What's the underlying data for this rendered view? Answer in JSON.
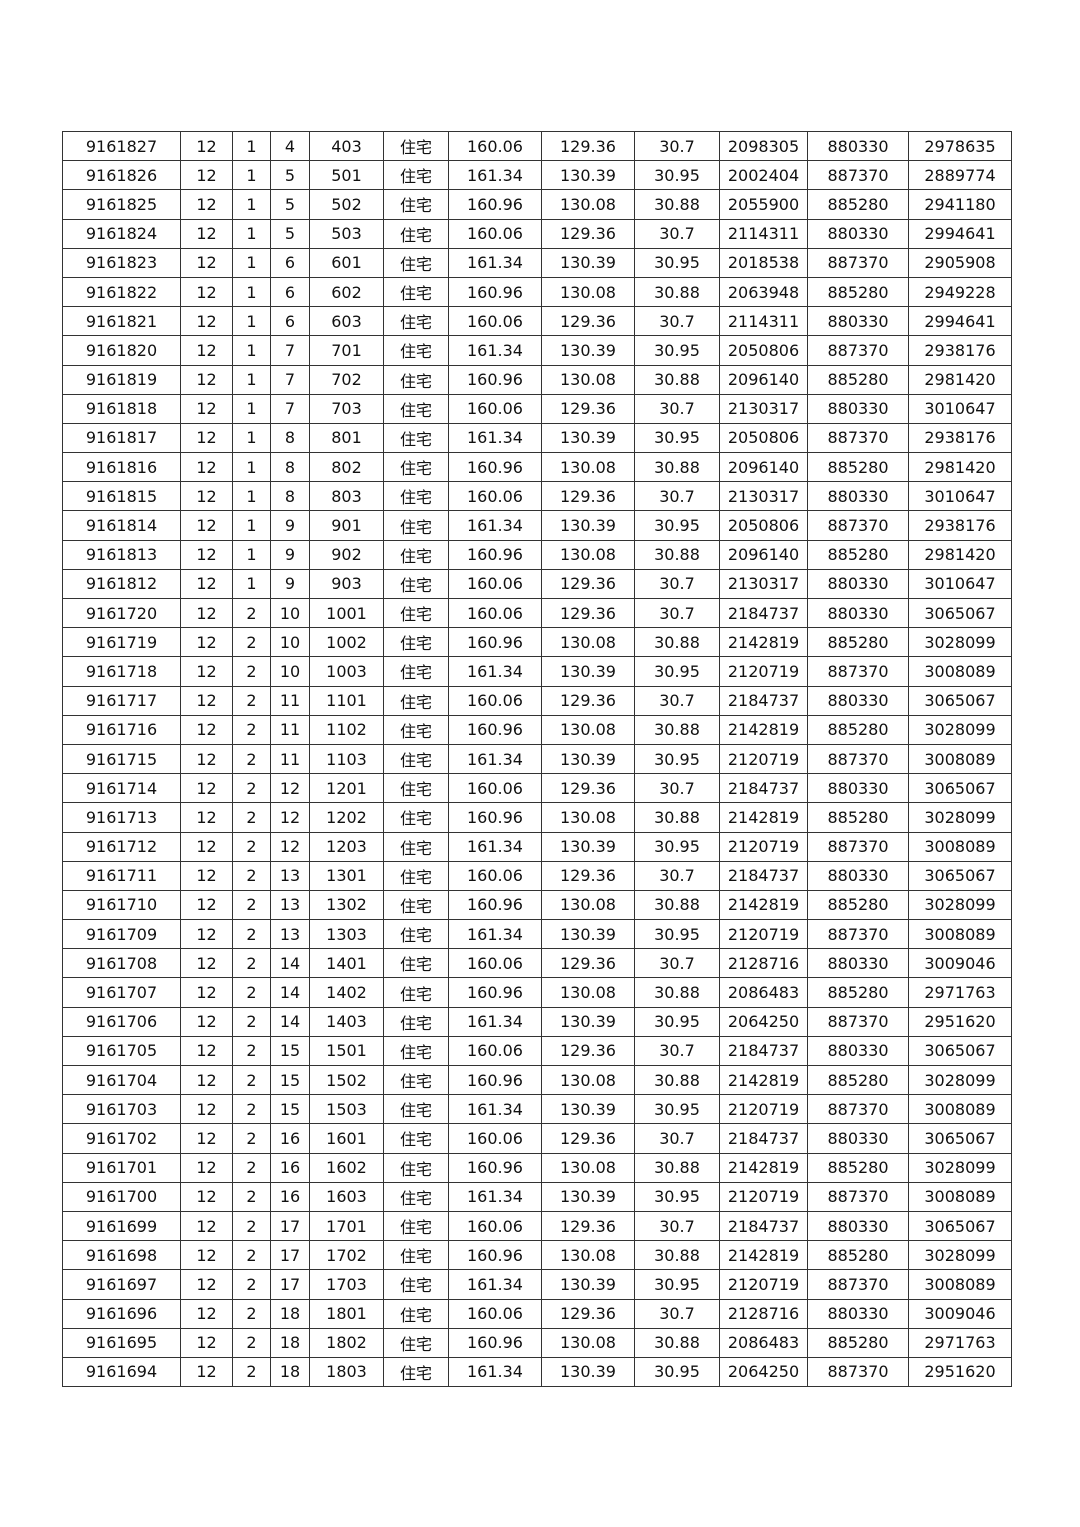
{
  "table": {
    "rows": [
      [
        "9161827",
        "12",
        "1",
        "4",
        "403",
        "住宅",
        "160.06",
        "129.36",
        "30.7",
        "2098305",
        "880330",
        "2978635"
      ],
      [
        "9161826",
        "12",
        "1",
        "5",
        "501",
        "住宅",
        "161.34",
        "130.39",
        "30.95",
        "2002404",
        "887370",
        "2889774"
      ],
      [
        "9161825",
        "12",
        "1",
        "5",
        "502",
        "住宅",
        "160.96",
        "130.08",
        "30.88",
        "2055900",
        "885280",
        "2941180"
      ],
      [
        "9161824",
        "12",
        "1",
        "5",
        "503",
        "住宅",
        "160.06",
        "129.36",
        "30.7",
        "2114311",
        "880330",
        "2994641"
      ],
      [
        "9161823",
        "12",
        "1",
        "6",
        "601",
        "住宅",
        "161.34",
        "130.39",
        "30.95",
        "2018538",
        "887370",
        "2905908"
      ],
      [
        "9161822",
        "12",
        "1",
        "6",
        "602",
        "住宅",
        "160.96",
        "130.08",
        "30.88",
        "2063948",
        "885280",
        "2949228"
      ],
      [
        "9161821",
        "12",
        "1",
        "6",
        "603",
        "住宅",
        "160.06",
        "129.36",
        "30.7",
        "2114311",
        "880330",
        "2994641"
      ],
      [
        "9161820",
        "12",
        "1",
        "7",
        "701",
        "住宅",
        "161.34",
        "130.39",
        "30.95",
        "2050806",
        "887370",
        "2938176"
      ],
      [
        "9161819",
        "12",
        "1",
        "7",
        "702",
        "住宅",
        "160.96",
        "130.08",
        "30.88",
        "2096140",
        "885280",
        "2981420"
      ],
      [
        "9161818",
        "12",
        "1",
        "7",
        "703",
        "住宅",
        "160.06",
        "129.36",
        "30.7",
        "2130317",
        "880330",
        "3010647"
      ],
      [
        "9161817",
        "12",
        "1",
        "8",
        "801",
        "住宅",
        "161.34",
        "130.39",
        "30.95",
        "2050806",
        "887370",
        "2938176"
      ],
      [
        "9161816",
        "12",
        "1",
        "8",
        "802",
        "住宅",
        "160.96",
        "130.08",
        "30.88",
        "2096140",
        "885280",
        "2981420"
      ],
      [
        "9161815",
        "12",
        "1",
        "8",
        "803",
        "住宅",
        "160.06",
        "129.36",
        "30.7",
        "2130317",
        "880330",
        "3010647"
      ],
      [
        "9161814",
        "12",
        "1",
        "9",
        "901",
        "住宅",
        "161.34",
        "130.39",
        "30.95",
        "2050806",
        "887370",
        "2938176"
      ],
      [
        "9161813",
        "12",
        "1",
        "9",
        "902",
        "住宅",
        "160.96",
        "130.08",
        "30.88",
        "2096140",
        "885280",
        "2981420"
      ],
      [
        "9161812",
        "12",
        "1",
        "9",
        "903",
        "住宅",
        "160.06",
        "129.36",
        "30.7",
        "2130317",
        "880330",
        "3010647"
      ],
      [
        "9161720",
        "12",
        "2",
        "10",
        "1001",
        "住宅",
        "160.06",
        "129.36",
        "30.7",
        "2184737",
        "880330",
        "3065067"
      ],
      [
        "9161719",
        "12",
        "2",
        "10",
        "1002",
        "住宅",
        "160.96",
        "130.08",
        "30.88",
        "2142819",
        "885280",
        "3028099"
      ],
      [
        "9161718",
        "12",
        "2",
        "10",
        "1003",
        "住宅",
        "161.34",
        "130.39",
        "30.95",
        "2120719",
        "887370",
        "3008089"
      ],
      [
        "9161717",
        "12",
        "2",
        "11",
        "1101",
        "住宅",
        "160.06",
        "129.36",
        "30.7",
        "2184737",
        "880330",
        "3065067"
      ],
      [
        "9161716",
        "12",
        "2",
        "11",
        "1102",
        "住宅",
        "160.96",
        "130.08",
        "30.88",
        "2142819",
        "885280",
        "3028099"
      ],
      [
        "9161715",
        "12",
        "2",
        "11",
        "1103",
        "住宅",
        "161.34",
        "130.39",
        "30.95",
        "2120719",
        "887370",
        "3008089"
      ],
      [
        "9161714",
        "12",
        "2",
        "12",
        "1201",
        "住宅",
        "160.06",
        "129.36",
        "30.7",
        "2184737",
        "880330",
        "3065067"
      ],
      [
        "9161713",
        "12",
        "2",
        "12",
        "1202",
        "住宅",
        "160.96",
        "130.08",
        "30.88",
        "2142819",
        "885280",
        "3028099"
      ],
      [
        "9161712",
        "12",
        "2",
        "12",
        "1203",
        "住宅",
        "161.34",
        "130.39",
        "30.95",
        "2120719",
        "887370",
        "3008089"
      ],
      [
        "9161711",
        "12",
        "2",
        "13",
        "1301",
        "住宅",
        "160.06",
        "129.36",
        "30.7",
        "2184737",
        "880330",
        "3065067"
      ],
      [
        "9161710",
        "12",
        "2",
        "13",
        "1302",
        "住宅",
        "160.96",
        "130.08",
        "30.88",
        "2142819",
        "885280",
        "3028099"
      ],
      [
        "9161709",
        "12",
        "2",
        "13",
        "1303",
        "住宅",
        "161.34",
        "130.39",
        "30.95",
        "2120719",
        "887370",
        "3008089"
      ],
      [
        "9161708",
        "12",
        "2",
        "14",
        "1401",
        "住宅",
        "160.06",
        "129.36",
        "30.7",
        "2128716",
        "880330",
        "3009046"
      ],
      [
        "9161707",
        "12",
        "2",
        "14",
        "1402",
        "住宅",
        "160.96",
        "130.08",
        "30.88",
        "2086483",
        "885280",
        "2971763"
      ],
      [
        "9161706",
        "12",
        "2",
        "14",
        "1403",
        "住宅",
        "161.34",
        "130.39",
        "30.95",
        "2064250",
        "887370",
        "2951620"
      ],
      [
        "9161705",
        "12",
        "2",
        "15",
        "1501",
        "住宅",
        "160.06",
        "129.36",
        "30.7",
        "2184737",
        "880330",
        "3065067"
      ],
      [
        "9161704",
        "12",
        "2",
        "15",
        "1502",
        "住宅",
        "160.96",
        "130.08",
        "30.88",
        "2142819",
        "885280",
        "3028099"
      ],
      [
        "9161703",
        "12",
        "2",
        "15",
        "1503",
        "住宅",
        "161.34",
        "130.39",
        "30.95",
        "2120719",
        "887370",
        "3008089"
      ],
      [
        "9161702",
        "12",
        "2",
        "16",
        "1601",
        "住宅",
        "160.06",
        "129.36",
        "30.7",
        "2184737",
        "880330",
        "3065067"
      ],
      [
        "9161701",
        "12",
        "2",
        "16",
        "1602",
        "住宅",
        "160.96",
        "130.08",
        "30.88",
        "2142819",
        "885280",
        "3028099"
      ],
      [
        "9161700",
        "12",
        "2",
        "16",
        "1603",
        "住宅",
        "161.34",
        "130.39",
        "30.95",
        "2120719",
        "887370",
        "3008089"
      ],
      [
        "9161699",
        "12",
        "2",
        "17",
        "1701",
        "住宅",
        "160.06",
        "129.36",
        "30.7",
        "2184737",
        "880330",
        "3065067"
      ],
      [
        "9161698",
        "12",
        "2",
        "17",
        "1702",
        "住宅",
        "160.96",
        "130.08",
        "30.88",
        "2142819",
        "885280",
        "3028099"
      ],
      [
        "9161697",
        "12",
        "2",
        "17",
        "1703",
        "住宅",
        "161.34",
        "130.39",
        "30.95",
        "2120719",
        "887370",
        "3008089"
      ],
      [
        "9161696",
        "12",
        "2",
        "18",
        "1801",
        "住宅",
        "160.06",
        "129.36",
        "30.7",
        "2128716",
        "880330",
        "3009046"
      ],
      [
        "9161695",
        "12",
        "2",
        "18",
        "1802",
        "住宅",
        "160.96",
        "130.08",
        "30.88",
        "2086483",
        "885280",
        "2971763"
      ],
      [
        "9161694",
        "12",
        "2",
        "18",
        "1803",
        "住宅",
        "161.34",
        "130.39",
        "30.95",
        "2064250",
        "887370",
        "2951620"
      ]
    ]
  }
}
